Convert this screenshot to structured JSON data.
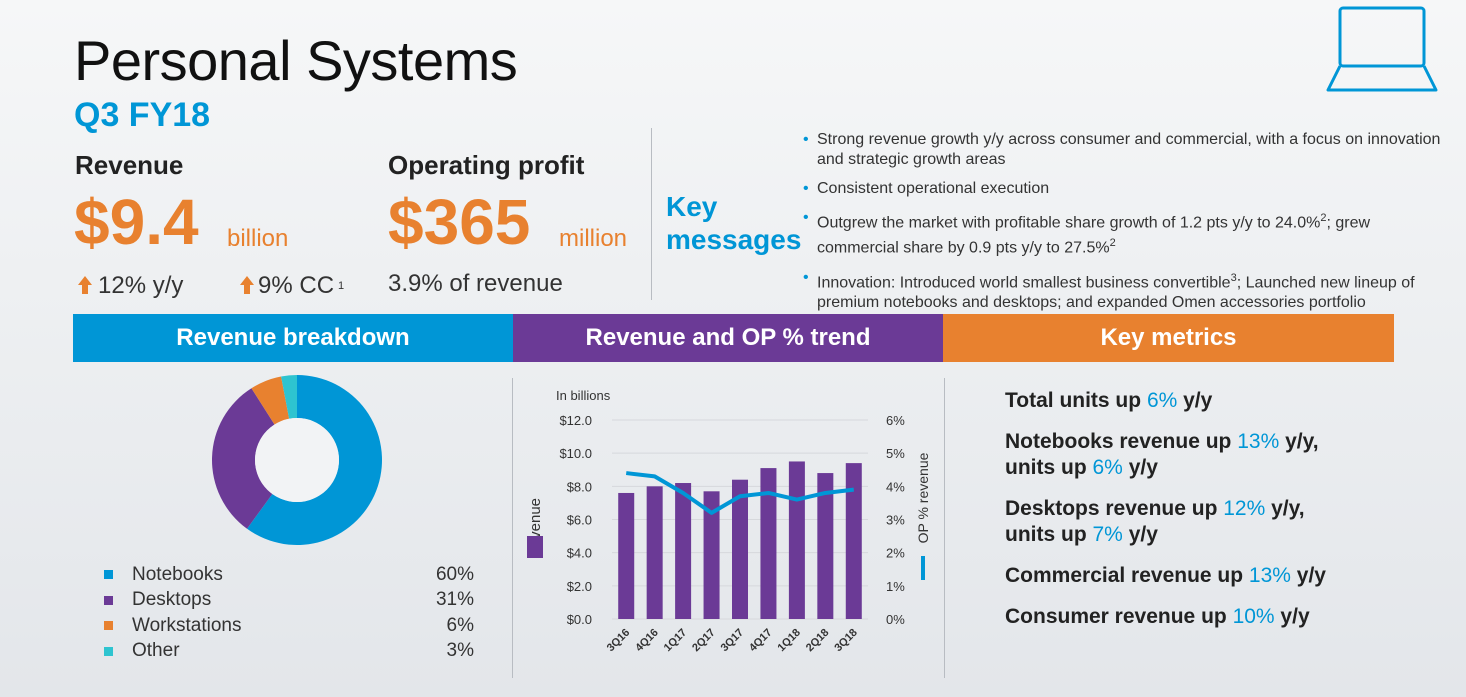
{
  "header": {
    "title": "Personal Systems",
    "subtitle": "Q3 FY18"
  },
  "icons": {
    "laptop": "laptop-icon",
    "up_arrow": "up-arrow-icon"
  },
  "colors": {
    "blue": "#0096d6",
    "purple": "#6b3a96",
    "orange": "#e8812f",
    "teal": "#2ec4d0"
  },
  "revenue": {
    "label": "Revenue",
    "value": "$9.4",
    "unit": "billion",
    "yoy": "12% y/y",
    "cc": "9% CC",
    "cc_sup": "1"
  },
  "operating_profit": {
    "label": "Operating profit",
    "value": "$365",
    "unit": "million",
    "pct_of_revenue": "3.9% of revenue"
  },
  "key_messages": {
    "title_line1": "Key",
    "title_line2": "messages",
    "bullets": [
      {
        "text": "Strong revenue growth y/y across consumer and commercial, with a focus on innovation and strategic growth areas"
      },
      {
        "text": "Consistent operational execution"
      },
      {
        "pre": "Outgrew the market with profitable share growth of 1.2 pts y/y to 24.0%",
        "sup1": "2",
        "mid": "; grew commercial share by 0.9 pts y/y to 27.5%",
        "sup2": "2"
      },
      {
        "pre": "Innovation: Introduced world smallest business convertible",
        "sup1": "3",
        "mid": "; Launched new lineup of premium notebooks and desktops; and expanded Omen accessories portfolio"
      }
    ]
  },
  "sections": {
    "breakdown": "Revenue breakdown",
    "trend": "Revenue and OP % trend",
    "metrics": "Key metrics"
  },
  "breakdown": {
    "items": [
      {
        "name": "Notebooks",
        "pct": "60%",
        "value": 60,
        "color": "#0096d6"
      },
      {
        "name": "Desktops",
        "pct": "31%",
        "value": 31,
        "color": "#6b3a96"
      },
      {
        "name": "Workstations",
        "pct": "6%",
        "value": 6,
        "color": "#e8812f"
      },
      {
        "name": "Other",
        "pct": "3%",
        "value": 3,
        "color": "#2ec4d0"
      }
    ]
  },
  "chart_data": {
    "type": "bar",
    "units_note": "In billions",
    "categories": [
      "3Q16",
      "4Q16",
      "1Q17",
      "2Q17",
      "3Q17",
      "4Q17",
      "1Q18",
      "2Q18",
      "3Q18"
    ],
    "series": [
      {
        "name": "Revenue",
        "type": "bar",
        "axis": "left",
        "color": "#6b3a96",
        "values": [
          7.6,
          8.0,
          8.2,
          7.7,
          8.4,
          9.1,
          9.5,
          8.8,
          9.4
        ]
      },
      {
        "name": "OP % revenue",
        "type": "line",
        "axis": "right",
        "color": "#0096d6",
        "values": [
          4.4,
          4.3,
          3.8,
          3.2,
          3.7,
          3.8,
          3.6,
          3.8,
          3.9
        ]
      }
    ],
    "y_left": {
      "label": "Revenue",
      "ticks": [
        "$0.0",
        "$2.0",
        "$4.0",
        "$6.0",
        "$8.0",
        "$10.0",
        "$12.0"
      ],
      "ylim": [
        0,
        12
      ]
    },
    "y_right": {
      "label": "OP % revenue",
      "ticks": [
        "0%",
        "1%",
        "2%",
        "3%",
        "4%",
        "5%",
        "6%"
      ],
      "ylim": [
        0,
        6
      ]
    },
    "grid": true
  },
  "key_metrics": [
    {
      "pre": "Total units up ",
      "hl": "6%",
      "post": " y/y"
    },
    {
      "pre": "Notebooks revenue up ",
      "hl": "13%",
      "post": " y/y,",
      "line2_pre": "units up ",
      "line2_hl": "6%",
      "line2_post": " y/y"
    },
    {
      "pre": "Desktops revenue up ",
      "hl": "12%",
      "post": " y/y,",
      "line2_pre": "units up ",
      "line2_hl": "7%",
      "line2_post": " y/y"
    },
    {
      "pre": "Commercial revenue up ",
      "hl": "13%",
      "post": " y/y"
    },
    {
      "pre": "Consumer revenue up ",
      "hl": "10%",
      "post": " y/y"
    }
  ]
}
